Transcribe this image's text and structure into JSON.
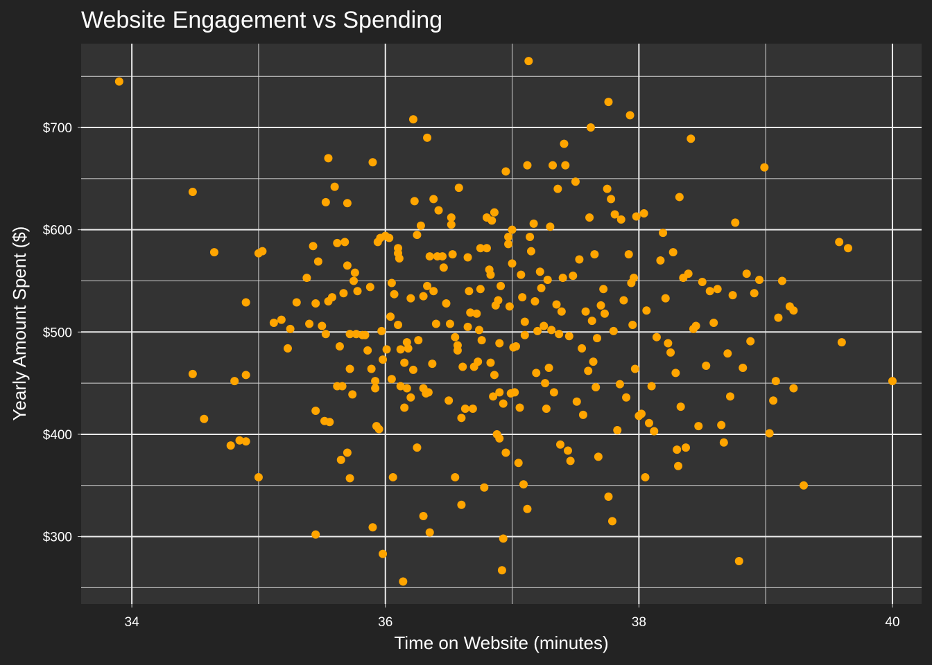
{
  "chart_data": {
    "type": "scatter",
    "title": "Website Engagement vs Spending",
    "xlabel": "Time on Website (minutes)",
    "ylabel": "Yearly Amount Spent ($)",
    "xlim": [
      33.6,
      40.23
    ],
    "ylim": [
      234,
      782
    ],
    "x_ticks": [
      34,
      36,
      38,
      40
    ],
    "x_tick_labels": [
      "34",
      "36",
      "38",
      "40"
    ],
    "y_ticks": [
      300,
      400,
      500,
      600,
      700
    ],
    "y_tick_labels": [
      "$300",
      "$400",
      "$500",
      "$600",
      "$700"
    ],
    "grid": true,
    "legend": "none",
    "colors": {
      "point": "#FFA500",
      "panel": "#333333",
      "background": "#232323",
      "grid": "#ebebeb"
    },
    "points": [
      [
        33.9,
        745
      ],
      [
        34.48,
        637
      ],
      [
        34.48,
        459
      ],
      [
        34.57,
        415
      ],
      [
        34.65,
        578
      ],
      [
        34.78,
        389
      ],
      [
        34.81,
        452
      ],
      [
        34.85,
        394
      ],
      [
        34.9,
        458
      ],
      [
        34.9,
        393
      ],
      [
        34.9,
        529
      ],
      [
        35.0,
        358
      ],
      [
        35.0,
        577
      ],
      [
        35.03,
        579
      ],
      [
        35.12,
        509
      ],
      [
        35.18,
        512
      ],
      [
        35.23,
        484
      ],
      [
        35.25,
        503
      ],
      [
        35.3,
        529
      ],
      [
        35.38,
        553
      ],
      [
        35.4,
        508
      ],
      [
        35.43,
        584
      ],
      [
        35.45,
        302
      ],
      [
        35.45,
        423
      ],
      [
        35.45,
        528
      ],
      [
        35.47,
        569
      ],
      [
        35.5,
        506
      ],
      [
        35.52,
        413
      ],
      [
        35.53,
        498
      ],
      [
        35.53,
        627
      ],
      [
        35.55,
        670
      ],
      [
        35.55,
        530
      ],
      [
        35.56,
        412
      ],
      [
        35.58,
        534
      ],
      [
        35.6,
        642
      ],
      [
        35.62,
        447
      ],
      [
        35.62,
        587
      ],
      [
        35.64,
        486
      ],
      [
        35.65,
        375
      ],
      [
        35.66,
        447
      ],
      [
        35.67,
        538
      ],
      [
        35.68,
        588
      ],
      [
        35.7,
        382
      ],
      [
        35.7,
        626
      ],
      [
        35.7,
        565
      ],
      [
        35.72,
        498
      ],
      [
        35.72,
        357
      ],
      [
        35.72,
        464
      ],
      [
        35.74,
        439
      ],
      [
        35.75,
        550
      ],
      [
        35.76,
        558
      ],
      [
        35.77,
        498
      ],
      [
        35.78,
        540
      ],
      [
        35.82,
        497
      ],
      [
        35.84,
        497
      ],
      [
        35.86,
        482
      ],
      [
        35.88,
        544
      ],
      [
        35.89,
        464
      ],
      [
        35.9,
        666
      ],
      [
        35.9,
        309
      ],
      [
        35.92,
        445
      ],
      [
        35.92,
        452
      ],
      [
        35.93,
        408
      ],
      [
        35.94,
        588
      ],
      [
        35.95,
        405
      ],
      [
        35.96,
        592
      ],
      [
        35.97,
        501
      ],
      [
        35.98,
        283
      ],
      [
        35.98,
        473
      ],
      [
        36.0,
        594
      ],
      [
        36.01,
        483
      ],
      [
        36.03,
        592
      ],
      [
        36.04,
        515
      ],
      [
        36.05,
        454
      ],
      [
        36.05,
        548
      ],
      [
        36.06,
        358
      ],
      [
        36.07,
        537
      ],
      [
        36.1,
        582
      ],
      [
        36.1,
        577
      ],
      [
        36.1,
        507
      ],
      [
        36.11,
        572
      ],
      [
        36.12,
        483
      ],
      [
        36.12,
        447
      ],
      [
        36.14,
        256
      ],
      [
        36.15,
        470
      ],
      [
        36.15,
        426
      ],
      [
        36.17,
        490
      ],
      [
        36.17,
        445
      ],
      [
        36.18,
        484
      ],
      [
        36.2,
        533
      ],
      [
        36.2,
        436
      ],
      [
        36.22,
        463
      ],
      [
        36.22,
        708
      ],
      [
        36.23,
        628
      ],
      [
        36.25,
        595
      ],
      [
        36.25,
        387
      ],
      [
        36.26,
        492
      ],
      [
        36.28,
        604
      ],
      [
        36.3,
        535
      ],
      [
        36.3,
        320
      ],
      [
        36.3,
        445
      ],
      [
        36.32,
        440
      ],
      [
        36.33,
        690
      ],
      [
        36.33,
        545
      ],
      [
        36.34,
        441
      ],
      [
        36.35,
        304
      ],
      [
        36.35,
        574
      ],
      [
        36.37,
        469
      ],
      [
        36.38,
        540
      ],
      [
        36.38,
        630
      ],
      [
        36.4,
        508
      ],
      [
        36.41,
        574
      ],
      [
        36.42,
        619
      ],
      [
        36.45,
        574
      ],
      [
        36.46,
        563
      ],
      [
        36.48,
        528
      ],
      [
        36.5,
        433
      ],
      [
        36.51,
        508
      ],
      [
        36.52,
        612
      ],
      [
        36.52,
        605
      ],
      [
        36.53,
        576
      ],
      [
        36.55,
        358
      ],
      [
        36.55,
        495
      ],
      [
        36.57,
        482
      ],
      [
        36.57,
        487
      ],
      [
        36.58,
        641
      ],
      [
        36.6,
        416
      ],
      [
        36.6,
        331
      ],
      [
        36.61,
        466
      ],
      [
        36.63,
        425
      ],
      [
        36.65,
        573
      ],
      [
        36.65,
        505
      ],
      [
        36.66,
        540
      ],
      [
        36.67,
        519
      ],
      [
        36.69,
        425
      ],
      [
        36.7,
        466
      ],
      [
        36.72,
        518
      ],
      [
        36.73,
        471
      ],
      [
        36.74,
        502
      ],
      [
        36.75,
        542
      ],
      [
        36.75,
        582
      ],
      [
        36.76,
        492
      ],
      [
        36.78,
        348
      ],
      [
        36.8,
        582
      ],
      [
        36.8,
        612
      ],
      [
        36.82,
        561
      ],
      [
        36.83,
        470
      ],
      [
        36.83,
        556
      ],
      [
        36.84,
        609
      ],
      [
        36.85,
        437
      ],
      [
        36.86,
        617
      ],
      [
        36.86,
        458
      ],
      [
        36.87,
        526
      ],
      [
        36.88,
        400
      ],
      [
        36.89,
        531
      ],
      [
        36.9,
        489
      ],
      [
        36.9,
        396
      ],
      [
        36.9,
        441
      ],
      [
        36.91,
        545
      ],
      [
        36.92,
        267
      ],
      [
        36.93,
        298
      ],
      [
        36.93,
        430
      ],
      [
        36.95,
        382
      ],
      [
        36.95,
        657
      ],
      [
        36.97,
        586
      ],
      [
        36.97,
        593
      ],
      [
        36.98,
        525
      ],
      [
        36.99,
        440
      ],
      [
        37.0,
        567
      ],
      [
        37.0,
        600
      ],
      [
        37.01,
        485
      ],
      [
        37.02,
        441
      ],
      [
        37.03,
        486
      ],
      [
        37.05,
        372
      ],
      [
        37.06,
        426
      ],
      [
        37.07,
        556
      ],
      [
        37.08,
        534
      ],
      [
        37.09,
        351
      ],
      [
        37.1,
        497
      ],
      [
        37.1,
        510
      ],
      [
        37.12,
        327
      ],
      [
        37.12,
        663
      ],
      [
        37.13,
        765
      ],
      [
        37.14,
        593
      ],
      [
        37.15,
        579
      ],
      [
        37.17,
        606
      ],
      [
        37.18,
        530
      ],
      [
        37.19,
        460
      ],
      [
        37.2,
        501
      ],
      [
        37.22,
        559
      ],
      [
        37.23,
        543
      ],
      [
        37.25,
        506
      ],
      [
        37.26,
        450
      ],
      [
        37.27,
        425
      ],
      [
        37.28,
        551
      ],
      [
        37.29,
        465
      ],
      [
        37.3,
        603
      ],
      [
        37.31,
        502
      ],
      [
        37.32,
        663
      ],
      [
        37.33,
        441
      ],
      [
        37.35,
        527
      ],
      [
        37.36,
        640
      ],
      [
        37.37,
        498
      ],
      [
        37.38,
        390
      ],
      [
        37.39,
        520
      ],
      [
        37.4,
        553
      ],
      [
        37.41,
        684
      ],
      [
        37.42,
        663
      ],
      [
        37.44,
        384
      ],
      [
        37.45,
        496
      ],
      [
        37.46,
        374
      ],
      [
        37.48,
        555
      ],
      [
        37.5,
        647
      ],
      [
        37.51,
        432
      ],
      [
        37.53,
        571
      ],
      [
        37.55,
        484
      ],
      [
        37.56,
        419
      ],
      [
        37.58,
        520
      ],
      [
        37.6,
        462
      ],
      [
        37.61,
        612
      ],
      [
        37.62,
        700
      ],
      [
        37.63,
        511
      ],
      [
        37.64,
        471
      ],
      [
        37.65,
        576
      ],
      [
        37.66,
        446
      ],
      [
        37.67,
        494
      ],
      [
        37.68,
        378
      ],
      [
        37.7,
        526
      ],
      [
        37.72,
        542
      ],
      [
        37.73,
        518
      ],
      [
        37.75,
        640
      ],
      [
        37.76,
        725
      ],
      [
        37.76,
        339
      ],
      [
        37.78,
        630
      ],
      [
        37.79,
        315
      ],
      [
        37.8,
        501
      ],
      [
        37.81,
        615
      ],
      [
        37.83,
        404
      ],
      [
        37.85,
        449
      ],
      [
        37.86,
        610
      ],
      [
        37.88,
        531
      ],
      [
        37.9,
        436
      ],
      [
        37.92,
        576
      ],
      [
        37.93,
        712
      ],
      [
        37.94,
        548
      ],
      [
        37.95,
        507
      ],
      [
        37.96,
        553
      ],
      [
        37.97,
        464
      ],
      [
        37.98,
        613
      ],
      [
        38.0,
        418
      ],
      [
        38.02,
        420
      ],
      [
        38.04,
        616
      ],
      [
        38.05,
        358
      ],
      [
        38.06,
        521
      ],
      [
        38.08,
        411
      ],
      [
        38.1,
        447
      ],
      [
        38.12,
        403
      ],
      [
        38.14,
        495
      ],
      [
        38.17,
        570
      ],
      [
        38.19,
        597
      ],
      [
        38.21,
        533
      ],
      [
        38.23,
        489
      ],
      [
        38.25,
        480
      ],
      [
        38.27,
        578
      ],
      [
        38.29,
        460
      ],
      [
        38.3,
        385
      ],
      [
        38.31,
        369
      ],
      [
        38.32,
        632
      ],
      [
        38.33,
        427
      ],
      [
        38.35,
        553
      ],
      [
        38.37,
        387
      ],
      [
        38.39,
        557
      ],
      [
        38.41,
        689
      ],
      [
        38.43,
        503
      ],
      [
        38.45,
        506
      ],
      [
        38.47,
        408
      ],
      [
        38.5,
        549
      ],
      [
        38.53,
        467
      ],
      [
        38.56,
        540
      ],
      [
        38.59,
        509
      ],
      [
        38.62,
        542
      ],
      [
        38.65,
        409
      ],
      [
        38.67,
        392
      ],
      [
        38.7,
        479
      ],
      [
        38.72,
        437
      ],
      [
        38.74,
        536
      ],
      [
        38.76,
        607
      ],
      [
        38.79,
        276
      ],
      [
        38.82,
        465
      ],
      [
        38.85,
        557
      ],
      [
        38.88,
        491
      ],
      [
        38.91,
        538
      ],
      [
        38.95,
        551
      ],
      [
        38.99,
        661
      ],
      [
        39.03,
        401
      ],
      [
        39.06,
        433
      ],
      [
        39.08,
        452
      ],
      [
        39.1,
        514
      ],
      [
        39.13,
        550
      ],
      [
        39.19,
        525
      ],
      [
        39.22,
        445
      ],
      [
        39.22,
        521
      ],
      [
        39.3,
        350
      ],
      [
        39.58,
        588
      ],
      [
        39.6,
        490
      ],
      [
        39.65,
        582
      ],
      [
        40.0,
        452
      ]
    ]
  }
}
